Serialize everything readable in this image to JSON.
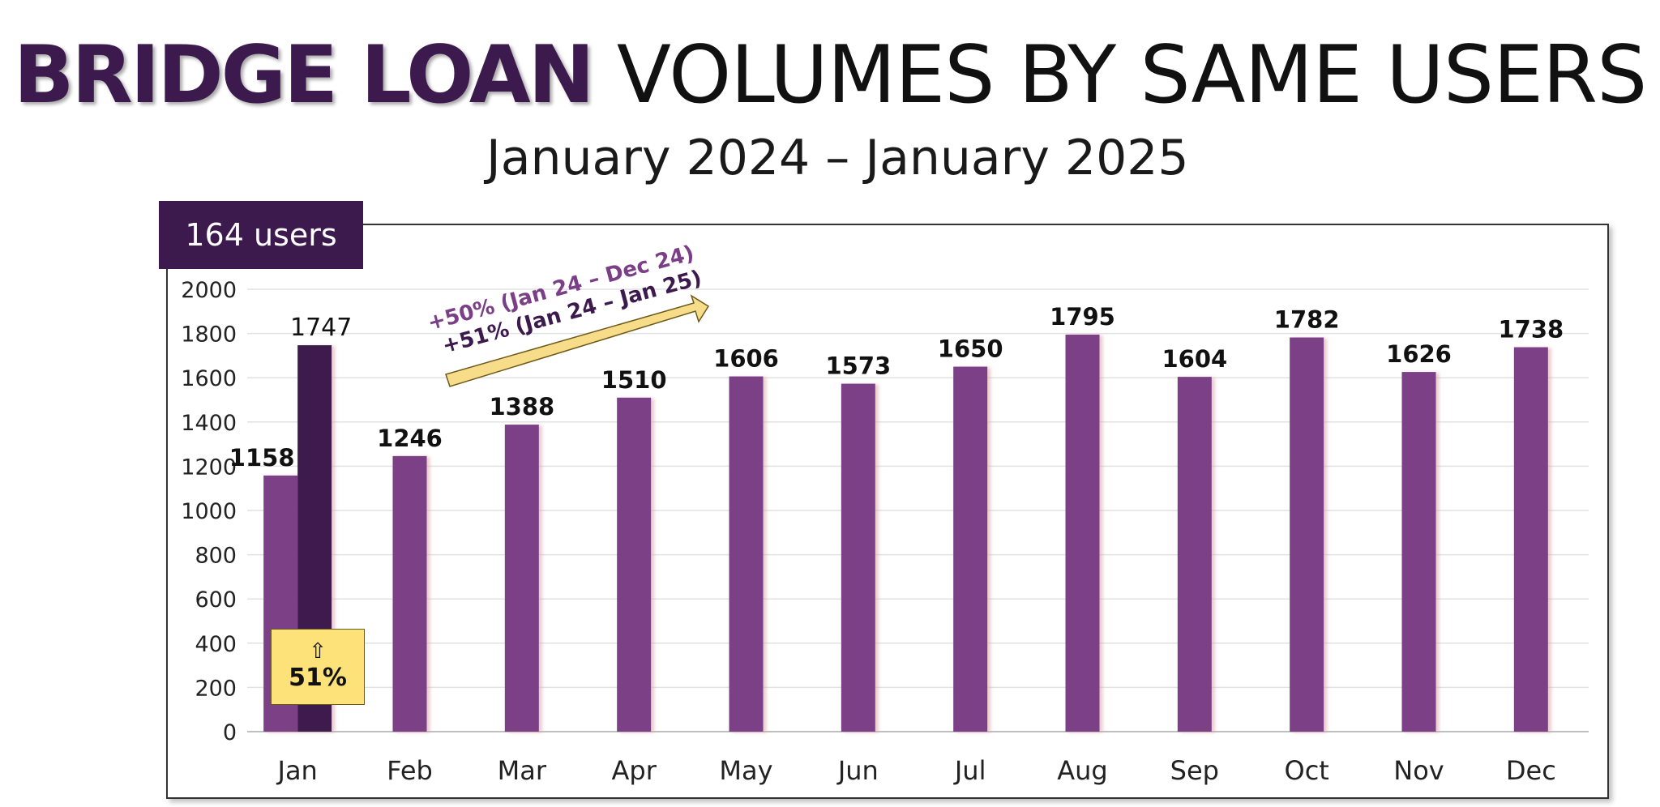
{
  "title": {
    "bold": "BRIDGE LOAN",
    "light": "VOLUMES BY SAME USERS"
  },
  "subtitle": "January 2024 – January 2025",
  "users_badge": "164 users",
  "growth_box": {
    "icon": "up-arrow-icon",
    "arrow": "⇧",
    "value": "51%"
  },
  "annotation": {
    "line1": "+50% (Jan 24 – Dec 24)",
    "line2": "+51% (Jan 24 – Jan 25)"
  },
  "colors": {
    "bar_2024": "#7b3f87",
    "bar_jan25": "#3d1a4d",
    "title_bold": "#3d1a4d",
    "annotation_line1": "#7b3f87",
    "annotation_line2": "#3d1a4d",
    "highlight": "#fde27a"
  },
  "chart_data": {
    "type": "bar",
    "categories": [
      "Jan",
      "Feb",
      "Mar",
      "Apr",
      "May",
      "Jun",
      "Jul",
      "Aug",
      "Sep",
      "Oct",
      "Nov",
      "Dec"
    ],
    "series": [
      {
        "values": [
          1158,
          1246,
          1388,
          1510,
          1606,
          1573,
          1650,
          1795,
          1604,
          1782,
          1626,
          1738
        ]
      },
      {
        "values": [
          1747,
          null,
          null,
          null,
          null,
          null,
          null,
          null,
          null,
          null,
          null,
          null
        ]
      }
    ],
    "yticks": [
      0,
      200,
      400,
      600,
      800,
      1000,
      1200,
      1400,
      1600,
      1800,
      2000
    ],
    "ylim": [
      0,
      2000
    ],
    "grid": true,
    "legend": "none"
  }
}
